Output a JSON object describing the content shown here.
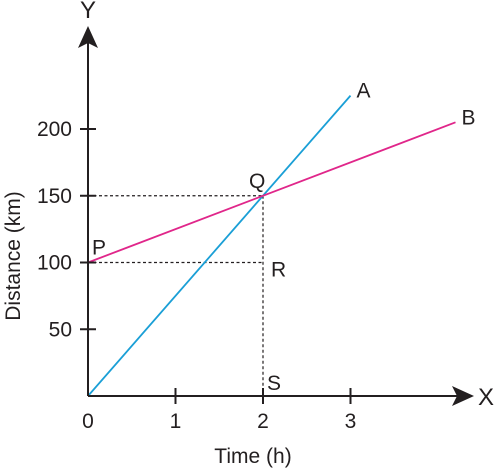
{
  "chart_data": {
    "type": "line",
    "xlabel": "Time (h)",
    "ylabel": "Distance (km)",
    "x_axis_letter": "X",
    "y_axis_letter": "Y",
    "x_ticks": [
      0,
      1,
      2,
      3
    ],
    "y_ticks": [
      50,
      100,
      150,
      200
    ],
    "origin_label": "0",
    "xlim": [
      0,
      4.25
    ],
    "ylim": [
      0,
      250
    ],
    "series": [
      {
        "name": "A",
        "color": "#1a9fd6",
        "points": [
          [
            0,
            0
          ],
          [
            3,
            225
          ]
        ]
      },
      {
        "name": "B",
        "color": "#e0268a",
        "points": [
          [
            0,
            100
          ],
          [
            4.2,
            205
          ]
        ]
      }
    ],
    "points": [
      {
        "label": "P",
        "x": 0,
        "y": 100
      },
      {
        "label": "Q",
        "x": 2,
        "y": 150
      },
      {
        "label": "R",
        "x": 2,
        "y": 100
      },
      {
        "label": "S",
        "x": 2,
        "y": 0
      }
    ],
    "guide_lines": [
      {
        "from": [
          0,
          150
        ],
        "to": [
          2,
          150
        ]
      },
      {
        "from": [
          0,
          100
        ],
        "to": [
          2,
          100
        ]
      },
      {
        "from": [
          2,
          150
        ],
        "to": [
          2,
          0
        ]
      }
    ],
    "axis_color": "#231f20",
    "grid": false
  }
}
